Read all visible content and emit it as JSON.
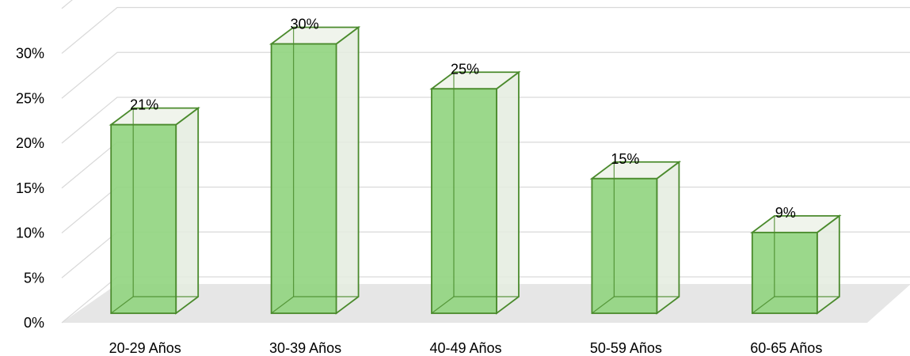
{
  "chart_data": {
    "type": "bar",
    "categories": [
      "20-29 Años",
      "30-39 Años",
      "40-49 Años",
      "50-59 Años",
      "60-65 Años"
    ],
    "values": [
      21,
      30,
      25,
      15,
      9
    ],
    "data_labels": [
      "21%",
      "30%",
      "25%",
      "15%",
      "9%"
    ],
    "y_ticks": [
      0,
      5,
      10,
      15,
      20,
      25,
      30
    ],
    "y_tick_labels": [
      "0%",
      "5%",
      "10%",
      "15%",
      "20%",
      "25%",
      "30%"
    ],
    "ylim": [
      0,
      30
    ],
    "style": "3d-column",
    "grid": true,
    "legend": "none",
    "colors": {
      "bar_front": "#92d581",
      "bar_side": "#e4ecdf",
      "bar_edge": "#4a8a2c",
      "floor": "#e6e6e6",
      "grid": "#d9d9d9"
    }
  }
}
